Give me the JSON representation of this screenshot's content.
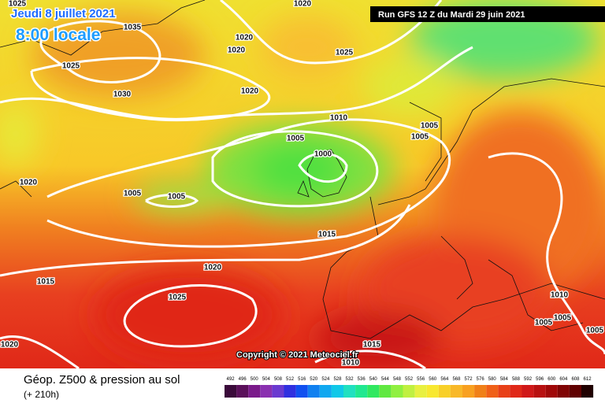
{
  "header": {
    "date": "Jeudi 8 juillet 2021",
    "time": "8:00 locale",
    "run": "Run GFS 12 Z du Mardi 29 juin 2021"
  },
  "copyright": "Copyright © 2021 Meteociel.fr",
  "footer": {
    "title": "Géop. Z500 & pression au sol",
    "lead": "(+ 210h)"
  },
  "isobar_labels": [
    1025,
    1035,
    1020,
    1020,
    1020,
    1025,
    1025,
    1030,
    1020,
    1010,
    1005,
    1005,
    1005,
    1000,
    1020,
    1005,
    1005,
    1015,
    1020,
    1015,
    1025,
    1010,
    1005,
    1005,
    1005,
    1020,
    1015,
    1010
  ],
  "scale": {
    "values": [
      492,
      496,
      500,
      504,
      508,
      512,
      516,
      520,
      524,
      528,
      532,
      536,
      540,
      544,
      548,
      552,
      556,
      560,
      564,
      568,
      572,
      576,
      580,
      584,
      588,
      592,
      596,
      600,
      604,
      608,
      612
    ],
    "colors": [
      "#3a0a3a",
      "#5a105a",
      "#7a1a8a",
      "#8a30b0",
      "#6a3ad0",
      "#3030e0",
      "#1050f0",
      "#1080f0",
      "#10a8f0",
      "#10c8e8",
      "#20e0c0",
      "#20e890",
      "#30e860",
      "#60e840",
      "#90f040",
      "#c0f040",
      "#e8f040",
      "#f8e830",
      "#f8d028",
      "#f8b828",
      "#f8a020",
      "#f08018",
      "#f06018",
      "#e84018",
      "#e02818",
      "#d01818",
      "#b81010",
      "#a00808",
      "#800404",
      "#600000",
      "#200000"
    ]
  }
}
